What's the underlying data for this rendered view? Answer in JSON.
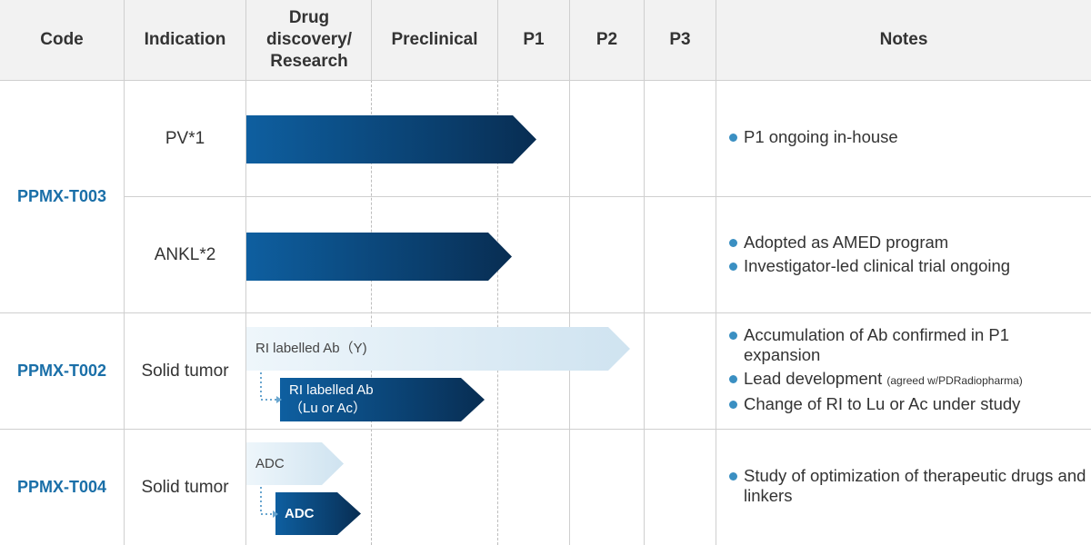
{
  "header": {
    "code": "Code",
    "indication": "Indication",
    "drug_discovery": "Drug discovery/ Research",
    "preclinical": "Preclinical",
    "p1": "P1",
    "p2": "P2",
    "p3": "P3",
    "notes": "Notes"
  },
  "rows": [
    {
      "code": "PPMX-T003",
      "indication": "PV*1",
      "notes": [
        "P1 ongoing in-house"
      ]
    },
    {
      "indication": "ANKL*2",
      "notes": [
        "Adopted as AMED program",
        "Investigator-led clinical trial ongoing"
      ]
    },
    {
      "code": "PPMX-T002",
      "indication": "Solid tumor",
      "bar_light": "RI labelled Ab（Y)",
      "bar_dark_line1": "RI labelled Ab",
      "bar_dark_line2": "（Lu or Ac）",
      "notes": [
        "Accumulation of Ab confirmed in P1 expansion",
        "Lead development",
        "Change of RI to Lu or Ac under study"
      ],
      "note_small": "(agreed w/PDRadiopharma)"
    },
    {
      "code": "PPMX-T004",
      "indication": "Solid tumor",
      "bar_light": "ADC",
      "bar_dark": "ADC",
      "notes": [
        "Study of  optimization of therapeutic drugs and linkers"
      ]
    }
  ],
  "colors": {
    "code_blue": "#1a6fa8",
    "bar_dark": "#0a3d6b",
    "bar_light": "#d5e7f2",
    "bullet": "#3a8fc2",
    "header_bg": "#f2f2f2"
  }
}
